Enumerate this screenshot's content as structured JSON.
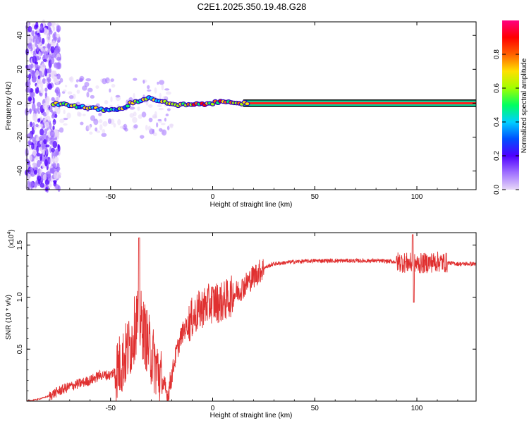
{
  "title": "C2E1.2025.350.19.48.G28",
  "chart_data": [
    {
      "type": "heatmap",
      "xlabel": "Height of straight line (km)",
      "ylabel": "Frequency (Hz)",
      "xlim": [
        -91,
        129
      ],
      "ylim": [
        -51,
        48
      ],
      "xticks": [
        -50,
        0,
        50,
        100
      ],
      "yticks": [
        -40,
        -20,
        0,
        20,
        40
      ],
      "colorbar": {
        "label": "Normalized spectral amplitude",
        "range": [
          0,
          1
        ],
        "ticks": [
          0.0,
          0.2,
          0.4,
          0.6,
          0.8
        ],
        "colors": [
          "#e8d8f8",
          "#a070ff",
          "#5000ff",
          "#0050ff",
          "#00d0ff",
          "#00ff60",
          "#a0ff00",
          "#ffe000",
          "#ff6000",
          "#ff0000",
          "#ff0080"
        ]
      },
      "ridge": [
        {
          "x": -78,
          "y": 0
        },
        {
          "x": -70,
          "y": -1
        },
        {
          "x": -60,
          "y": -3
        },
        {
          "x": -52,
          "y": -4
        },
        {
          "x": -46,
          "y": -4
        },
        {
          "x": -40,
          "y": 0
        },
        {
          "x": -35,
          "y": 2
        },
        {
          "x": -30,
          "y": 3
        },
        {
          "x": -25,
          "y": 1
        },
        {
          "x": -20,
          "y": -1
        },
        {
          "x": -10,
          "y": -1
        },
        {
          "x": 0,
          "y": 0
        },
        {
          "x": 5,
          "y": 1
        },
        {
          "x": 10,
          "y": 1
        },
        {
          "x": 15,
          "y": 0
        },
        {
          "x": 129,
          "y": 0
        }
      ],
      "grid": false,
      "legend": "right"
    },
    {
      "type": "line",
      "xlabel": "Height of straight line (km)",
      "ylabel": "SNR (10 * v/v)",
      "multiplier_label": "(x10",
      "multiplier_exp": "4",
      "multiplier_close": ")",
      "xlim": [
        -91,
        129
      ],
      "ylim": [
        0,
        1.62
      ],
      "xticks": [
        -50,
        0,
        50,
        100
      ],
      "yticks": [
        0.5,
        1.0,
        1.5
      ],
      "ytick_labels": [
        "0.5",
        "1.0",
        "1.5"
      ],
      "color": "#e03030",
      "series": [
        {
          "values": [
            {
              "x": -91,
              "y": 0.0
            },
            {
              "x": -85,
              "y": 0.02
            },
            {
              "x": -80,
              "y": 0.05
            },
            {
              "x": -75,
              "y": 0.1
            },
            {
              "x": -70,
              "y": 0.14
            },
            {
              "x": -65,
              "y": 0.17
            },
            {
              "x": -60,
              "y": 0.2
            },
            {
              "x": -55,
              "y": 0.25
            },
            {
              "x": -50,
              "y": 0.25
            },
            {
              "x": -45,
              "y": 0.35
            },
            {
              "x": -40,
              "y": 0.55
            },
            {
              "x": -37,
              "y": 0.8
            },
            {
              "x": -35,
              "y": 0.75
            },
            {
              "x": -30,
              "y": 0.45
            },
            {
              "x": -26,
              "y": 0.25
            },
            {
              "x": -22,
              "y": 0.05
            },
            {
              "x": -20,
              "y": 0.25
            },
            {
              "x": -18,
              "y": 0.45
            },
            {
              "x": -15,
              "y": 0.65
            },
            {
              "x": -10,
              "y": 0.8
            },
            {
              "x": -5,
              "y": 0.9
            },
            {
              "x": 0,
              "y": 0.95
            },
            {
              "x": 5,
              "y": 0.95
            },
            {
              "x": 10,
              "y": 1.02
            },
            {
              "x": 15,
              "y": 1.1
            },
            {
              "x": 20,
              "y": 1.2
            },
            {
              "x": 25,
              "y": 1.28
            },
            {
              "x": 30,
              "y": 1.32
            },
            {
              "x": 40,
              "y": 1.34
            },
            {
              "x": 50,
              "y": 1.35
            },
            {
              "x": 60,
              "y": 1.35
            },
            {
              "x": 70,
              "y": 1.35
            },
            {
              "x": 80,
              "y": 1.35
            },
            {
              "x": 90,
              "y": 1.34
            },
            {
              "x": 95,
              "y": 1.33
            },
            {
              "x": 100,
              "y": 1.32
            },
            {
              "x": 105,
              "y": 1.33
            },
            {
              "x": 110,
              "y": 1.34
            },
            {
              "x": 115,
              "y": 1.33
            },
            {
              "x": 120,
              "y": 1.32
            },
            {
              "x": 129,
              "y": 1.32
            }
          ]
        }
      ],
      "grid": false
    }
  ]
}
